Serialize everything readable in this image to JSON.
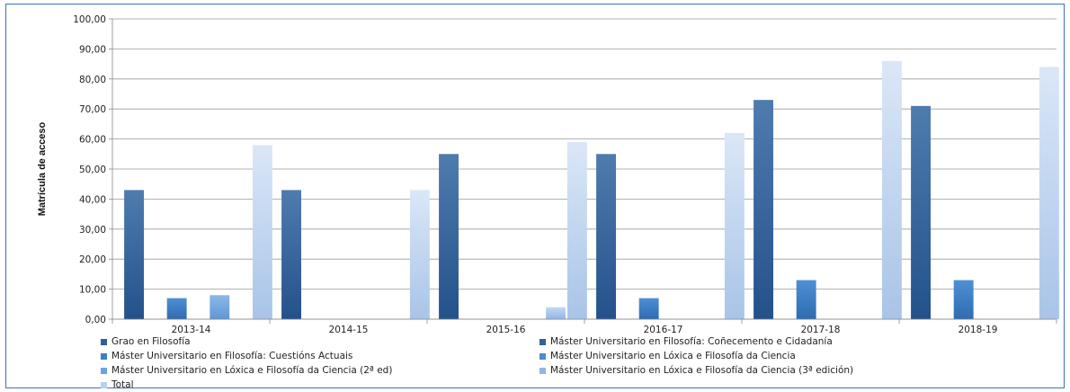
{
  "chart_data": {
    "type": "bar",
    "title": "",
    "xlabel": "",
    "ylabel": "Matrícula de acceso",
    "ylim": [
      0,
      100
    ],
    "yticks": [
      "0,00",
      "10,00",
      "20,00",
      "30,00",
      "40,00",
      "50,00",
      "60,00",
      "70,00",
      "80,00",
      "90,00",
      "100,00"
    ],
    "categories": [
      "2013-14",
      "2014-15",
      "2015-16",
      "2016-17",
      "2017-18",
      "2018-19"
    ],
    "grid": true,
    "legend_position": "bottom",
    "series": [
      {
        "name": "Grao en Filosofía",
        "color": "#2f5f93",
        "values": [
          43,
          43,
          55,
          55,
          73,
          71
        ]
      },
      {
        "name": "Máster Universitario en Filosofía: Coñecemento e Cidadanía",
        "color": "#2e6299",
        "values": [
          0,
          0,
          0,
          0,
          0,
          0
        ]
      },
      {
        "name": "Máster Universitario en Filosofía: Cuestións Actuais",
        "color": "#3f7fc2",
        "values": [
          7,
          0,
          0,
          7,
          13,
          13
        ]
      },
      {
        "name": "Máster Universitario en Lóxica e Filosofía da Ciencia",
        "color": "#4a8bd0",
        "values": [
          0,
          0,
          0,
          0,
          0,
          0
        ]
      },
      {
        "name": "Máster Universitario en Lóxica e Filosofía da Ciencia (2ª ed)",
        "color": "#6aa3e0",
        "values": [
          8,
          0,
          0,
          0,
          0,
          0
        ]
      },
      {
        "name": "Máster Universitario en Lóxica e Filosofía da Ciencia (3ª edición)",
        "color": "#8fb7e6",
        "values": [
          0,
          0,
          4,
          0,
          0,
          0
        ]
      },
      {
        "name": "Total",
        "color": "#b8d0ee",
        "values": [
          58,
          43,
          59,
          62,
          86,
          84
        ]
      }
    ]
  }
}
